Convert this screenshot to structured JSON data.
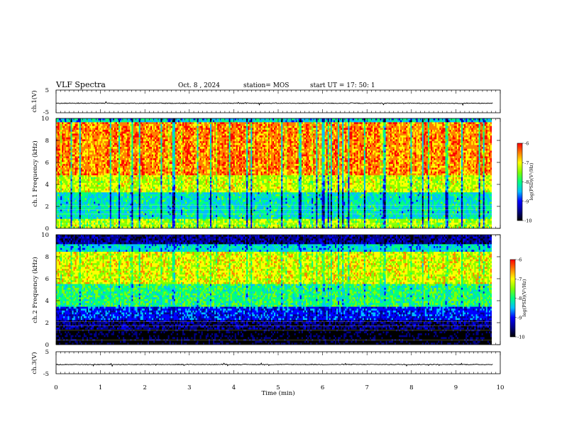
{
  "header": {
    "title": "VLF Spectra",
    "date": "Oct. 8 , 2024",
    "station": "station= MOS",
    "start": "start  UT =   17: 50: 1"
  },
  "chart_data": [
    {
      "type": "line",
      "name": "ch1-waveform",
      "ylabel": "ch.1(V)",
      "ylim": [
        -5,
        5
      ],
      "yticks": [
        "5",
        "-5"
      ],
      "xlim": [
        0,
        10
      ],
      "baseline": -0.8
    },
    {
      "type": "heatmap",
      "name": "ch1-spectrogram",
      "ylabel": "ch.1 Frequency  (kHz)",
      "ylim": [
        0,
        10
      ],
      "yticks": [
        "0",
        "2",
        "4",
        "6",
        "8",
        "10"
      ],
      "xlim": [
        0,
        9.83
      ],
      "colorbar": {
        "ticks": [
          "-6",
          "-7",
          "-8",
          "-9",
          "-10"
        ],
        "range": [
          -10,
          -6
        ],
        "label": "log(PSD)(V²/Hz)"
      }
    },
    {
      "type": "heatmap",
      "name": "ch2-spectrogram",
      "ylabel": "ch.2 Frequency  (kHz)",
      "ylim": [
        0,
        10
      ],
      "yticks": [
        "0",
        "2",
        "4",
        "6",
        "8",
        "10"
      ],
      "xlim": [
        0,
        9.83
      ],
      "colorbar": {
        "ticks": [
          "-6",
          "-7",
          "-8",
          "-9",
          "-10"
        ],
        "range": [
          -10,
          -6
        ],
        "label": "log(PSD)(V²/Hz)"
      }
    },
    {
      "type": "line",
      "name": "ch3-waveform",
      "ylabel": "ch.3(V)",
      "ylim": [
        -5,
        5
      ],
      "yticks": [
        "5",
        "-5"
      ],
      "xlim": [
        0,
        10
      ],
      "baseline": -0.8
    }
  ],
  "xaxis": {
    "label": "Time  (min)",
    "ticks": [
      "0",
      "1",
      "2",
      "3",
      "4",
      "5",
      "6",
      "7",
      "8",
      "9",
      "10"
    ]
  },
  "colors": {
    "colormap": [
      "#000000",
      "#00008b",
      "#0000ff",
      "#00bfff",
      "#00ff80",
      "#80ff00",
      "#ffff00",
      "#ff8000",
      "#ff0000",
      "#ffffff"
    ]
  }
}
